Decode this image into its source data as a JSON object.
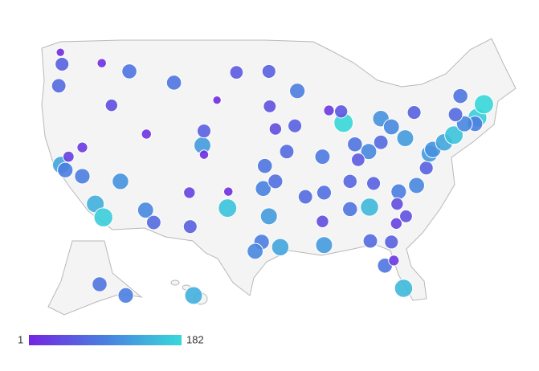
{
  "chart_data": {
    "type": "bubble-map",
    "lon": [
      -122.3,
      -122.5,
      -122.7,
      -117.4,
      -116.2,
      -114,
      -108.5,
      -111.9,
      -105,
      -104.8,
      -104.8,
      -100.8,
      -96.8,
      -103.2,
      -93.3,
      -96.7,
      -93.6,
      -96,
      -94.6,
      -97.3,
      -97.5,
      -96,
      -96.8,
      -97.7,
      -95.4,
      -98.5,
      -106.5,
      -106.6,
      -101.8,
      -101.9,
      -112,
      -111,
      -115.1,
      -118.2,
      -117.2,
      -122.4,
      -121.9,
      -121.5,
      -119.8,
      -119.8,
      -87.6,
      -87.9,
      -89.4,
      -83,
      -81.7,
      -83,
      -84.5,
      -86.2,
      -90.2,
      -90,
      -86.8,
      -85.8,
      -84.4,
      -86.8,
      -90,
      -90.2,
      -92.3,
      -80.8,
      -78.6,
      -77.4,
      -77,
      -76.6,
      -75.2,
      -74,
      -71.1,
      -71.4,
      -72.7,
      -73.8,
      -78.9,
      -80,
      -70.3,
      -73.2,
      -80.2,
      -82.5,
      -81.4,
      -81.7,
      -84.3,
      -81.1,
      -79.9,
      -81,
      -83.9,
      -149.9,
      -134.4,
      -157.9
    ],
    "lat": [
      47.6,
      48.75,
      45.5,
      47.7,
      43.6,
      46.9,
      45.8,
      40.8,
      39.7,
      38.8,
      41.1,
      46.8,
      46.9,
      44.1,
      45,
      43.5,
      41.6,
      41.3,
      39.1,
      37.7,
      35.5,
      36.2,
      32.8,
      30.3,
      29.8,
      29.4,
      31.8,
      35.1,
      35.2,
      33.6,
      33.4,
      32.2,
      36.2,
      34,
      32.7,
      37.8,
      37.3,
      38.6,
      36.7,
      39.5,
      41.9,
      43,
      43.1,
      42.3,
      41.5,
      40,
      39.1,
      39.8,
      38.6,
      35.1,
      36.2,
      38.3,
      33.7,
      33.5,
      30,
      32.3,
      34.7,
      35.2,
      35.8,
      37.5,
      38.9,
      39.3,
      40,
      40.7,
      42.4,
      41.8,
      41.8,
      42.7,
      42.9,
      40.4,
      43.7,
      44.5,
      25.8,
      28,
      28.5,
      30.3,
      30.4,
      32.1,
      32.8,
      34,
      36,
      61.2,
      58.3,
      21.3
    ],
    "values": [
      60,
      5,
      70,
      10,
      40,
      80,
      80,
      15,
      120,
      10,
      60,
      55,
      60,
      5,
      90,
      45,
      60,
      40,
      70,
      80,
      95,
      75,
      120,
      90,
      130,
      100,
      60,
      30,
      10,
      160,
      100,
      70,
      110,
      140,
      170,
      130,
      90,
      25,
      90,
      20,
      180,
      50,
      20,
      110,
      100,
      70,
      100,
      80,
      85,
      75,
      65,
      55,
      150,
      80,
      120,
      40,
      70,
      90,
      100,
      60,
      120,
      110,
      130,
      160,
      170,
      90,
      100,
      70,
      60,
      120,
      180,
      80,
      150,
      80,
      20,
      60,
      70,
      30,
      45,
      40,
      60,
      80,
      90,
      140
    ],
    "colorbar": {
      "min": 1,
      "max": 182,
      "colors": [
        "#7326e0",
        "#4a7fe0",
        "#37d9d9"
      ]
    }
  }
}
